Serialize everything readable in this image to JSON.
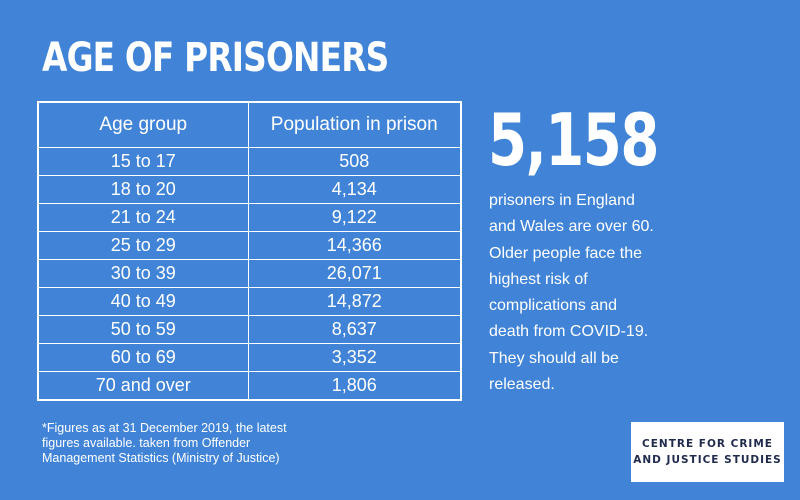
{
  "title": "AGE OF PRISONERS",
  "chart_data": {
    "type": "table",
    "columns": [
      "Age group",
      "Population in prison"
    ],
    "rows": [
      [
        "15 to 17",
        "508"
      ],
      [
        "18 to 20",
        "4,134"
      ],
      [
        "21 to 24",
        "9,122"
      ],
      [
        "25 to 29",
        "14,366"
      ],
      [
        "30 to 39",
        "26,071"
      ],
      [
        "40 to 49",
        "14,872"
      ],
      [
        "50 to 59",
        "8,637"
      ],
      [
        "60 to 69",
        "3,352"
      ],
      [
        "70 and over",
        "1,806"
      ]
    ]
  },
  "highlight": {
    "number": "5,158",
    "lines": [
      "prisoners in England",
      "and Wales are over 60.",
      "Older people face the",
      "highest risk of",
      "complications and",
      "death from COVID-19.",
      "They should all be",
      "released."
    ]
  },
  "footnote": {
    "lines": [
      "*Figures as at 31 December 2019, the latest",
      "figures available. taken from Offender",
      "Management Statistics (Ministry of Justice)"
    ]
  },
  "logo": {
    "lines": [
      "CENTRE FOR CRIME",
      "AND JUSTICE STUDIES"
    ]
  },
  "colors": {
    "background": "#4184d7",
    "text": "#ffffff",
    "logo_text": "#1f2a4d"
  }
}
